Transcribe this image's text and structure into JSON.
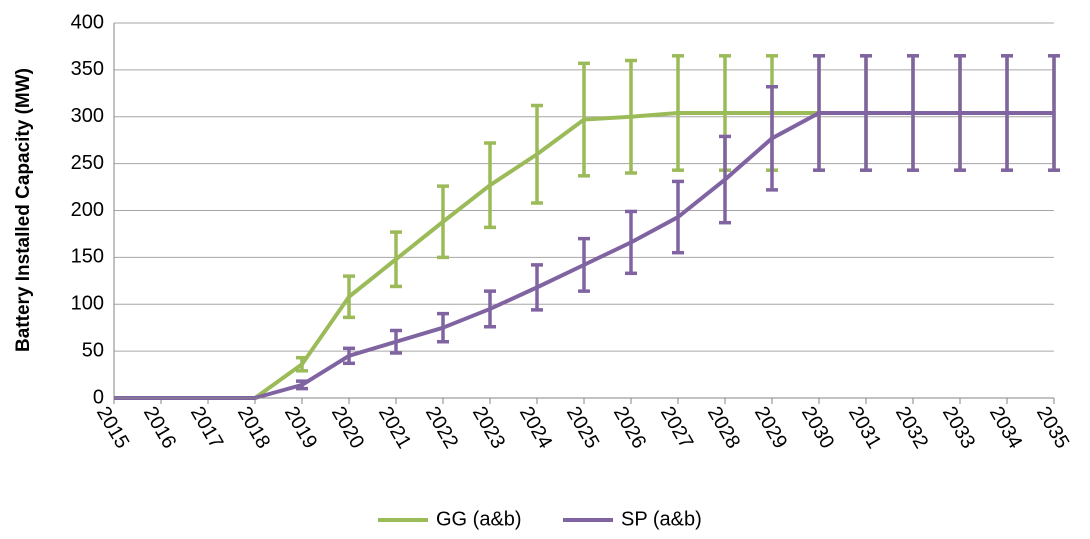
{
  "chart_data": {
    "type": "line",
    "y_label": "Battery Installed Capacity (MW)",
    "x": [
      2015,
      2016,
      2017,
      2018,
      2019,
      2020,
      2021,
      2022,
      2023,
      2024,
      2025,
      2026,
      2027,
      2028,
      2029,
      2030,
      2031,
      2032,
      2033,
      2034,
      2035
    ],
    "xlim": [
      2015,
      2035
    ],
    "xticks": [
      2015,
      2016,
      2017,
      2018,
      2019,
      2020,
      2021,
      2022,
      2023,
      2024,
      2025,
      2026,
      2027,
      2028,
      2029,
      2030,
      2031,
      2032,
      2033,
      2034,
      2035
    ],
    "ylim": [
      0,
      400
    ],
    "yticks": [
      0,
      50,
      100,
      150,
      200,
      250,
      300,
      350,
      400
    ],
    "grid": true,
    "legend": "bottom",
    "series": [
      {
        "name": "GG (a&b)",
        "color": "#9bbb59",
        "values": [
          0,
          0,
          0,
          0,
          36,
          108,
          148,
          188,
          227,
          260,
          297,
          300,
          304,
          304,
          304,
          304,
          304,
          304,
          304,
          304,
          304
        ],
        "errors": [
          0,
          0,
          0,
          0,
          7,
          22,
          29,
          38,
          45,
          52,
          60,
          60,
          61,
          61,
          61,
          61,
          61,
          61,
          61,
          61,
          61
        ]
      },
      {
        "name": "SP (a&b)",
        "color": "#8064a2",
        "values": [
          0,
          0,
          0,
          0,
          14,
          45,
          60,
          75,
          95,
          118,
          142,
          166,
          193,
          233,
          277,
          304,
          304,
          304,
          304,
          304,
          304
        ],
        "errors": [
          0,
          0,
          0,
          0,
          4,
          8,
          12,
          15,
          19,
          24,
          28,
          33,
          38,
          46,
          55,
          61,
          61,
          61,
          61,
          61,
          61
        ]
      }
    ]
  }
}
